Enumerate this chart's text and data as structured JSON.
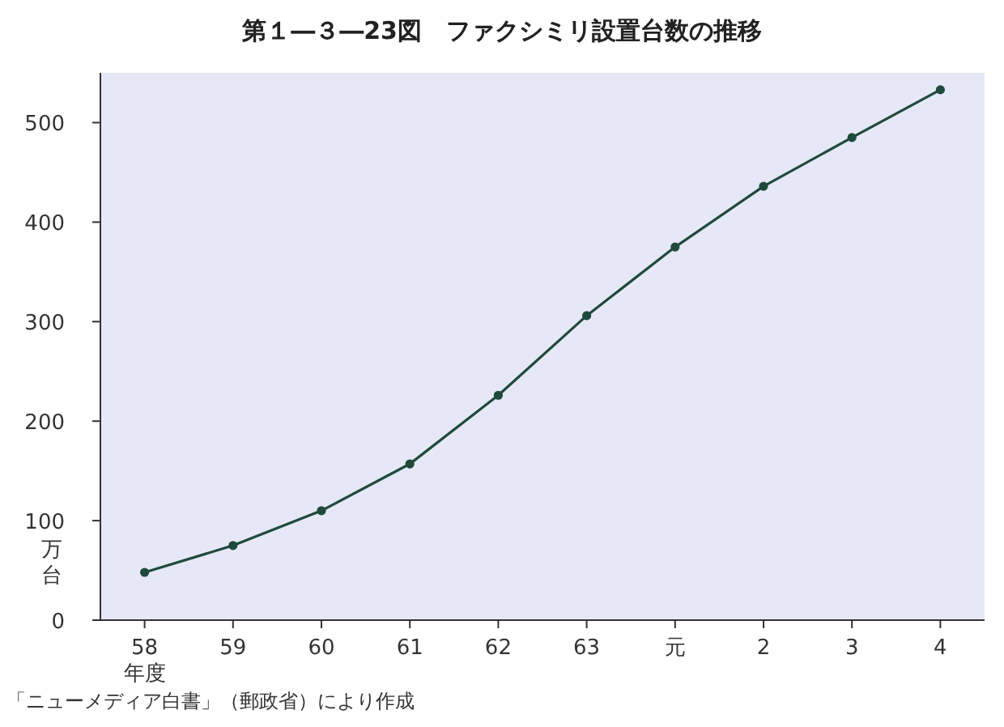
{
  "chart_data": {
    "type": "line",
    "title": "第１―３―23図　ファクシミリ設置台数の推移",
    "categories": [
      "58",
      "59",
      "60",
      "61",
      "62",
      "63",
      "元",
      "2",
      "3",
      "4"
    ],
    "series": [
      {
        "color": "#1f4a3c",
        "values": [
          48,
          75,
          110,
          157,
          226,
          306,
          375,
          436,
          485,
          533
        ]
      }
    ],
    "ylabel": "万台",
    "xlabel": "年度",
    "ylim": [
      0,
      550
    ],
    "yticks": [
      0,
      100,
      200,
      300,
      400,
      500
    ],
    "marker": "circle",
    "line_style": "solid",
    "grid": false,
    "annotations": [
      "「ニューメディア白書」（郵政省）により作成"
    ]
  }
}
